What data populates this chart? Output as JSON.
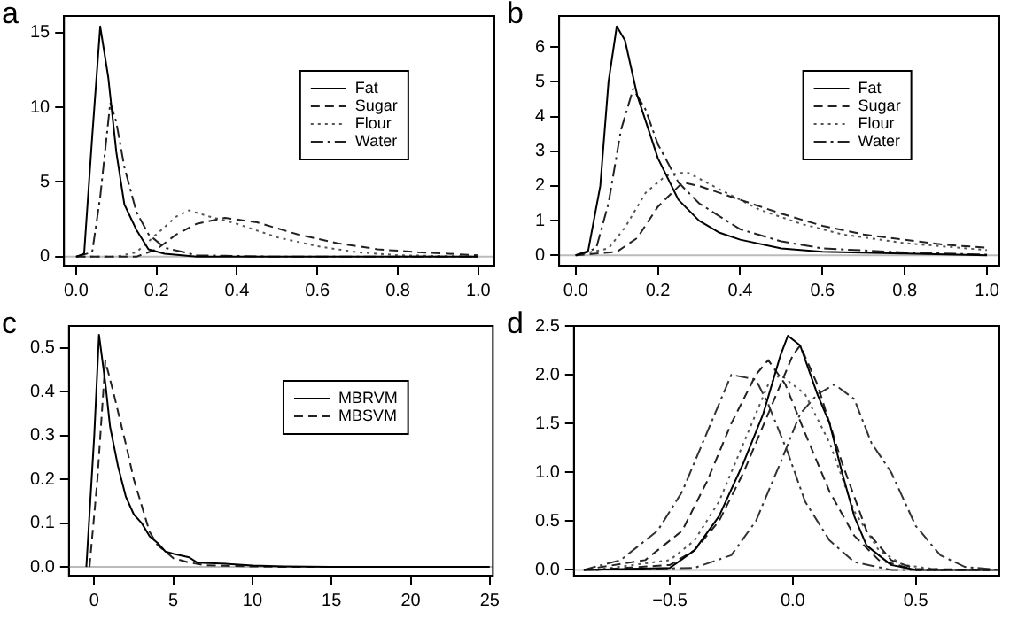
{
  "chart_data": [
    {
      "type": "line",
      "title": "a",
      "xlim": [
        -0.03,
        1.04
      ],
      "ylim": [
        -0.6,
        16.1
      ],
      "xticks": [
        {
          "value": 0,
          "label": "0.0"
        },
        0.2,
        0.4,
        0.6,
        0.8,
        {
          "value": 1,
          "label": "1.0"
        }
      ],
      "yticks": [
        0,
        5,
        10,
        15
      ],
      "legend": "top right",
      "ref_lines": [
        {
          "axis": "y",
          "value": 0,
          "color": "#bbbbbb"
        }
      ],
      "series": [
        {
          "name": "Fat",
          "color": "#000000",
          "line_style": "solid",
          "x": [
            0,
            0.02,
            0.04,
            0.06,
            0.08,
            0.1,
            0.12,
            0.15,
            0.18,
            0.22,
            0.3,
            1.0
          ],
          "values": [
            0,
            0.2,
            8,
            15.4,
            12,
            7,
            3.5,
            1.8,
            0.5,
            0.2,
            0,
            0
          ]
        },
        {
          "name": "Sugar",
          "color": "#222222",
          "line_style": "dashed",
          "x": [
            0,
            0.15,
            0.2,
            0.25,
            0.3,
            0.37,
            0.45,
            0.55,
            0.65,
            0.75,
            0.85,
            1.0
          ],
          "values": [
            0,
            0,
            0.5,
            1.5,
            2.2,
            2.6,
            2.3,
            1.5,
            0.9,
            0.5,
            0.3,
            0.1
          ]
        },
        {
          "name": "Flour",
          "color": "#555555",
          "line_style": "dotted",
          "x": [
            0,
            0.1,
            0.15,
            0.2,
            0.25,
            0.28,
            0.33,
            0.4,
            0.5,
            0.6,
            0.7,
            0.8,
            1.0
          ],
          "values": [
            0,
            0,
            0.3,
            1.5,
            2.7,
            3.1,
            2.7,
            2.2,
            1.3,
            0.7,
            0.3,
            0.1,
            0
          ]
        },
        {
          "name": "Water",
          "color": "#222222",
          "line_style": "dashdot",
          "x": [
            0,
            0.04,
            0.06,
            0.085,
            0.1,
            0.12,
            0.15,
            0.18,
            0.22,
            0.3,
            0.5,
            1.0
          ],
          "values": [
            0,
            0.3,
            4,
            10.3,
            9,
            6,
            3,
            1.5,
            0.6,
            0.1,
            0,
            0
          ]
        }
      ]
    },
    {
      "type": "line",
      "title": "b",
      "xlim": [
        -0.04,
        1.03
      ],
      "ylim": [
        -0.3,
        6.9
      ],
      "xticks": [
        {
          "value": 0,
          "label": "0.0"
        },
        0.2,
        0.4,
        0.6,
        0.8,
        {
          "value": 1,
          "label": "1.0"
        }
      ],
      "yticks": [
        0,
        1,
        2,
        3,
        4,
        5,
        6
      ],
      "legend": "top right",
      "ref_lines": [
        {
          "axis": "y",
          "value": 0,
          "color": "#bbbbbb"
        }
      ],
      "series": [
        {
          "name": "Fat",
          "color": "#000000",
          "line_style": "solid",
          "x": [
            0,
            0.03,
            0.06,
            0.08,
            0.1,
            0.12,
            0.15,
            0.2,
            0.25,
            0.3,
            0.35,
            0.4,
            0.5,
            0.6,
            0.8,
            1.0
          ],
          "values": [
            0,
            0.1,
            2,
            5,
            6.6,
            6.2,
            4.6,
            2.8,
            1.6,
            1.0,
            0.65,
            0.45,
            0.2,
            0.1,
            0.05,
            0
          ]
        },
        {
          "name": "Sugar",
          "color": "#222222",
          "line_style": "dashed",
          "x": [
            0,
            0.1,
            0.15,
            0.2,
            0.26,
            0.3,
            0.4,
            0.5,
            0.6,
            0.7,
            0.8,
            0.9,
            1.0
          ],
          "values": [
            0,
            0.1,
            0.5,
            1.4,
            2.1,
            2.0,
            1.6,
            1.2,
            0.85,
            0.6,
            0.45,
            0.3,
            0.22
          ]
        },
        {
          "name": "Flour",
          "color": "#555555",
          "line_style": "dotted",
          "x": [
            0,
            0.08,
            0.12,
            0.17,
            0.22,
            0.27,
            0.35,
            0.45,
            0.55,
            0.65,
            0.8,
            1.0
          ],
          "values": [
            0,
            0.2,
            0.8,
            1.8,
            2.3,
            2.4,
            1.9,
            1.3,
            0.9,
            0.6,
            0.35,
            0.15
          ]
        },
        {
          "name": "Water",
          "color": "#222222",
          "line_style": "dashdot",
          "x": [
            0,
            0.05,
            0.08,
            0.11,
            0.14,
            0.17,
            0.2,
            0.25,
            0.3,
            0.4,
            0.5,
            0.6,
            0.8,
            1.0
          ],
          "values": [
            0,
            0.2,
            1.5,
            3.6,
            4.8,
            4.2,
            3.2,
            2.1,
            1.5,
            0.75,
            0.4,
            0.2,
            0.08,
            0.02
          ]
        }
      ]
    },
    {
      "type": "line",
      "title": "c",
      "xlim": [
        -1.6,
        25.2
      ],
      "ylim": [
        -0.02,
        0.55
      ],
      "xticks": [
        0,
        5,
        10,
        15,
        20,
        25
      ],
      "yticks": [
        {
          "value": 0,
          "label": "0.0"
        },
        0.1,
        0.2,
        0.3,
        0.4,
        0.5
      ],
      "legend": "top right",
      "ref_lines": [
        {
          "axis": "y",
          "value": 0,
          "color": "#bbbbbb"
        }
      ],
      "series": [
        {
          "name": "MBRVM",
          "color": "#000000",
          "line_style": "solid",
          "x": [
            -0.5,
            0,
            0.3,
            0.7,
            1,
            1.5,
            2,
            2.5,
            3,
            3.5,
            4,
            4.5,
            5,
            6,
            6.5,
            8,
            10,
            12,
            15,
            25
          ],
          "values": [
            0,
            0.3,
            0.53,
            0.42,
            0.32,
            0.23,
            0.16,
            0.12,
            0.1,
            0.07,
            0.055,
            0.035,
            0.03,
            0.022,
            0.01,
            0.008,
            0.003,
            0.001,
            0,
            0
          ]
        },
        {
          "name": "MBSVM",
          "color": "#222222",
          "line_style": "dashed",
          "x": [
            -0.3,
            0.2,
            0.7,
            1.2,
            2,
            2.5,
            3,
            3.5,
            4,
            5,
            6,
            7,
            9,
            12,
            25
          ],
          "values": [
            0,
            0.2,
            0.47,
            0.4,
            0.28,
            0.2,
            0.14,
            0.08,
            0.05,
            0.02,
            0.01,
            0.004,
            0.002,
            0,
            0
          ]
        }
      ]
    },
    {
      "type": "line",
      "title": "d",
      "xlim": [
        -0.89,
        0.84
      ],
      "ylim": [
        -0.06,
        2.5
      ],
      "xticks": [
        {
          "value": -0.5,
          "label": "−0.5"
        },
        {
          "value": 0,
          "label": "0.0"
        },
        0.5
      ],
      "yticks": [
        {
          "value": 0,
          "label": "0.0"
        },
        0.5,
        {
          "value": 1,
          "label": "1.0"
        },
        1.5,
        {
          "value": 2,
          "label": "2.0"
        },
        2.5
      ],
      "ref_lines": [
        {
          "axis": "y",
          "value": 0,
          "color": "#bbbbbb"
        }
      ],
      "series": [
        {
          "color": "#000000",
          "line_style": "solid",
          "x": [
            -0.85,
            -0.5,
            -0.4,
            -0.3,
            -0.2,
            -0.12,
            -0.05,
            -0.02,
            0.03,
            0.1,
            0.15,
            0.2,
            0.25,
            0.3,
            0.4,
            0.5,
            0.84
          ],
          "values": [
            0,
            0.02,
            0.2,
            0.55,
            1.1,
            1.6,
            2.2,
            2.4,
            2.3,
            1.8,
            1.5,
            1.0,
            0.55,
            0.25,
            0.05,
            0,
            0
          ]
        },
        {
          "color": "#222222",
          "line_style": "dashed",
          "x": [
            -0.8,
            -0.5,
            -0.4,
            -0.3,
            -0.2,
            -0.1,
            0,
            0.03,
            0.1,
            0.2,
            0.3,
            0.4,
            0.5,
            0.8
          ],
          "values": [
            0,
            0.05,
            0.2,
            0.5,
            1.0,
            1.6,
            2.2,
            2.3,
            1.9,
            1.1,
            0.4,
            0.1,
            0.01,
            0
          ]
        },
        {
          "color": "#555555",
          "line_style": "dotted",
          "x": [
            -0.8,
            -0.5,
            -0.4,
            -0.3,
            -0.2,
            -0.1,
            -0.05,
            0.05,
            0.15,
            0.25,
            0.35,
            0.45,
            0.6,
            0.8
          ],
          "values": [
            0,
            0.1,
            0.3,
            0.7,
            1.3,
            1.9,
            2.0,
            1.8,
            1.3,
            0.6,
            0.2,
            0.05,
            0,
            0
          ]
        },
        {
          "color": "#222222",
          "line_style": "dashed",
          "x": [
            -0.85,
            -0.6,
            -0.45,
            -0.35,
            -0.25,
            -0.15,
            -0.1,
            -0.03,
            0.05,
            0.15,
            0.25,
            0.35,
            0.5,
            0.8
          ],
          "values": [
            0,
            0.1,
            0.4,
            0.9,
            1.5,
            2.0,
            2.15,
            1.9,
            1.4,
            0.8,
            0.35,
            0.1,
            0,
            0
          ]
        },
        {
          "color": "#333333",
          "line_style": "dashdot",
          "x": [
            -0.85,
            -0.7,
            -0.55,
            -0.45,
            -0.35,
            -0.25,
            -0.15,
            -0.1,
            -0.02,
            0.05,
            0.15,
            0.25,
            0.4,
            0.8
          ],
          "values": [
            0,
            0.1,
            0.4,
            0.8,
            1.4,
            2.0,
            1.95,
            1.7,
            1.2,
            0.7,
            0.3,
            0.08,
            0,
            0
          ]
        },
        {
          "color": "#333333",
          "line_style": "dashdot",
          "x": [
            -0.85,
            -0.4,
            -0.25,
            -0.15,
            -0.05,
            0.03,
            0.1,
            0.17,
            0.25,
            0.32,
            0.4,
            0.5,
            0.6,
            0.7,
            0.84
          ],
          "values": [
            0,
            0.02,
            0.15,
            0.5,
            1.1,
            1.6,
            1.8,
            1.9,
            1.75,
            1.3,
            1.0,
            0.45,
            0.15,
            0.03,
            0
          ]
        }
      ]
    }
  ]
}
